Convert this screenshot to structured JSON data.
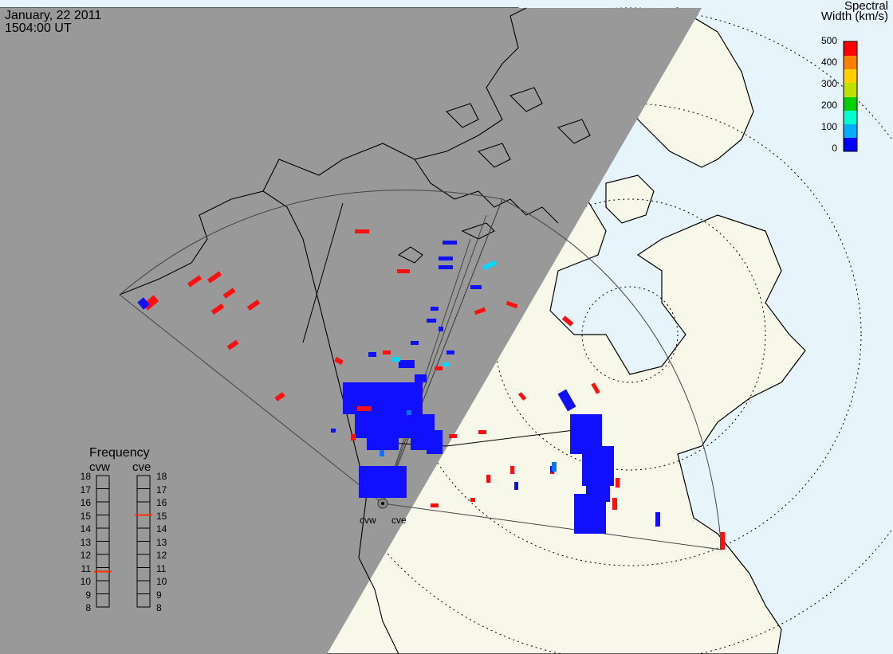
{
  "header": {
    "date": "January, 22 2011",
    "time": "1504:00 UT"
  },
  "colorbar": {
    "title_line1": "Spectral",
    "title_line2": "Width (km/s)",
    "ticks": [
      "500",
      "400",
      "300",
      "200",
      "100",
      "0"
    ],
    "colors": [
      "#0000ff",
      "#00b0ff",
      "#00ffd0",
      "#00d000",
      "#c0e000",
      "#ffd000",
      "#ff8000",
      "#ff0000"
    ]
  },
  "stations": {
    "west": "cvw",
    "east": "cve"
  },
  "frequency_panel": {
    "title": "Frequency",
    "col_left": "cvw",
    "col_right": "cve",
    "scale": [
      "18",
      "17",
      "16",
      "15",
      "14",
      "13",
      "12",
      "11",
      "10",
      "9",
      "8"
    ],
    "cvw_freq_mhz": 10.7,
    "cve_freq_mhz": 15.0,
    "marker_color": "#ff3000"
  },
  "map": {
    "night_color": "#999999",
    "land_color": "#f7f7ea",
    "ocean_color": "#e8f4fc",
    "coast_color": "#000000"
  }
}
